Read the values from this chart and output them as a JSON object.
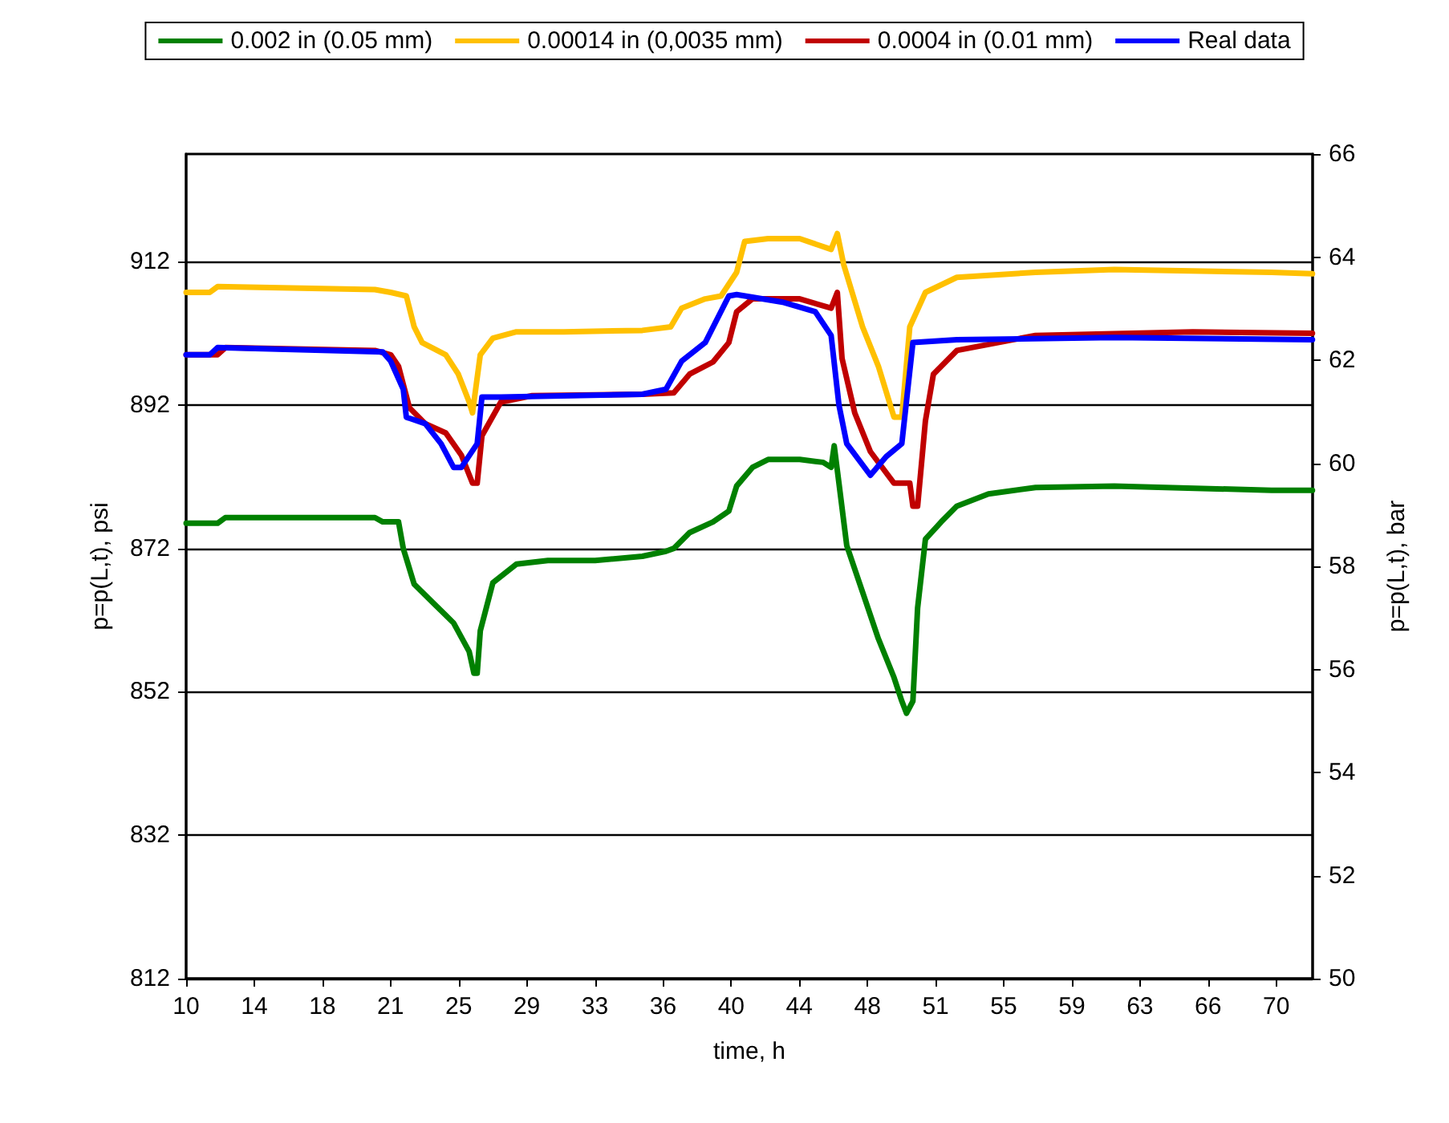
{
  "chart_data": {
    "type": "line",
    "xlabel": "time, h",
    "ylabel": "p=p(L,t), psi",
    "y2label": "p=p(L,t), bar",
    "xlim": [
      10,
      72
    ],
    "xticks": [
      10,
      {
        "value": 13.75,
        "label": "14"
      },
      {
        "value": 17.5,
        "label": "18"
      },
      {
        "value": 21.25,
        "label": "21"
      },
      25,
      {
        "value": 28.75,
        "label": "29"
      },
      {
        "value": 32.5,
        "label": "33"
      },
      {
        "value": 36.25,
        "label": "36"
      },
      40,
      {
        "value": 43.75,
        "label": "44"
      },
      {
        "value": 47.5,
        "label": "48"
      },
      {
        "value": 51.25,
        "label": "51"
      },
      55,
      {
        "value": 58.75,
        "label": "59"
      },
      {
        "value": 62.5,
        "label": "63"
      },
      {
        "value": 66.25,
        "label": "66"
      },
      70
    ],
    "ylim": [
      812,
      927
    ],
    "yticks": [
      812,
      832,
      852,
      872,
      892,
      912
    ],
    "y2lim": [
      50,
      66
    ],
    "y2ticks": [
      50,
      52,
      54,
      56,
      58,
      60,
      62,
      64,
      66
    ],
    "grid": "y",
    "legend": "top",
    "marker": "none",
    "line_style": "solid",
    "series": [
      {
        "name": "0.002 in (0.05 mm)",
        "color": "#008000",
        "x": [
          10,
          11.73,
          12.16,
          20.39,
          20.82,
          21.69,
          21.95,
          22.55,
          23.68,
          24.72,
          25.58,
          25.84,
          26.02,
          26.19,
          26.88,
          28.18,
          29.91,
          32.51,
          35.11,
          36.41,
          36.84,
          37.71,
          39.0,
          39.87,
          40.3,
          41.17,
          42.03,
          43.77,
          45.06,
          45.5,
          45.67,
          45.93,
          46.36,
          47.23,
          48.1,
          48.96,
          49.39,
          49.65,
          50.0,
          50.26,
          50.69,
          51.56,
          52.42,
          54.16,
          56.75,
          61.08,
          69.74,
          71.99
        ],
        "values": [
          875.5,
          875.5,
          876.3,
          876.3,
          875.7,
          875.7,
          872,
          867,
          864.2,
          861.6,
          857.6,
          854.6,
          854.6,
          860.5,
          867.2,
          869.8,
          870.3,
          870.3,
          870.9,
          871.6,
          872,
          874.2,
          875.7,
          877.2,
          880.7,
          883.3,
          884.4,
          884.4,
          884,
          883.3,
          886.3,
          881.1,
          872.4,
          865.9,
          859.4,
          854,
          850.7,
          849,
          850.7,
          863.7,
          873.3,
          875.7,
          877.9,
          879.6,
          880.5,
          880.7,
          880.1,
          880.1
        ]
      },
      {
        "name": "0.00014 in (0,0035 mm)",
        "color": "#ffc000",
        "x": [
          10,
          11.3,
          11.73,
          20.39,
          21.26,
          22.12,
          22.55,
          22.99,
          24.29,
          24.98,
          25.58,
          25.76,
          26.19,
          26.88,
          28.18,
          30.78,
          35.11,
          36.67,
          37.27,
          38.57,
          39.44,
          40.3,
          40.74,
          42.03,
          43.77,
          45.5,
          45.84,
          46.19,
          47.23,
          48.1,
          48.96,
          49.39,
          49.83,
          50.69,
          52.42,
          56.75,
          61.08,
          69.74,
          71.99
        ],
        "values": [
          907.7,
          907.7,
          908.5,
          908.1,
          907.7,
          907.2,
          902.9,
          900.7,
          899,
          896.3,
          892.4,
          890.9,
          899,
          901.3,
          902.2,
          902.2,
          902.4,
          902.9,
          905.5,
          906.8,
          907.2,
          910.5,
          914.8,
          915.2,
          915.2,
          913.7,
          915.9,
          911.6,
          902.9,
          897.4,
          890.3,
          890.3,
          902.9,
          907.7,
          909.8,
          910.5,
          910.9,
          910.5,
          910.3
        ]
      },
      {
        "name": "0.0004 in (0.01 mm)",
        "color": "#c00000",
        "x": [
          10,
          11.73,
          12.16,
          20.39,
          21.26,
          21.69,
          22.29,
          23.16,
          24.29,
          25.15,
          25.76,
          26.02,
          26.28,
          27.32,
          29.05,
          35.11,
          36.84,
          37.71,
          39.0,
          39.87,
          40.3,
          41.17,
          43.77,
          45.5,
          45.84,
          46.1,
          46.8,
          47.66,
          48.96,
          49.83,
          50.0,
          50.26,
          50.69,
          51.13,
          52.42,
          56.75,
          65.41,
          71.99
        ],
        "values": [
          899,
          899,
          900,
          899.6,
          899,
          897.4,
          891.6,
          889.4,
          888.1,
          885,
          881.1,
          881.1,
          887.7,
          892.4,
          893.3,
          893.5,
          893.7,
          896.3,
          898,
          900.7,
          905,
          906.8,
          906.8,
          905.5,
          907.7,
          898.5,
          890.9,
          885.5,
          881.1,
          881.1,
          877.9,
          877.9,
          889.8,
          896.3,
          899.6,
          901.7,
          902.2,
          902
        ]
      },
      {
        "name": "Real data",
        "color": "#0000ff",
        "x": [
          10,
          11.3,
          11.73,
          20.82,
          21.26,
          21.95,
          22.12,
          23.16,
          24.03,
          24.72,
          25.15,
          26.02,
          26.28,
          27.32,
          35.11,
          36.41,
          37.27,
          38.57,
          39.87,
          40.3,
          42.9,
          44.63,
          45.5,
          45.93,
          46.36,
          47.66,
          48.53,
          49.39,
          50.0,
          52.42,
          61.08,
          71.99
        ],
        "values": [
          899,
          899,
          900,
          899.4,
          898.1,
          894.2,
          890.3,
          889.4,
          886.6,
          883.3,
          883.3,
          886.6,
          893.1,
          893.1,
          893.5,
          894.2,
          898.1,
          900.7,
          907.2,
          907.4,
          906.3,
          905,
          901.7,
          892,
          886.6,
          882.2,
          884.8,
          886.6,
          900.7,
          901.1,
          901.4,
          901.1
        ]
      }
    ]
  }
}
